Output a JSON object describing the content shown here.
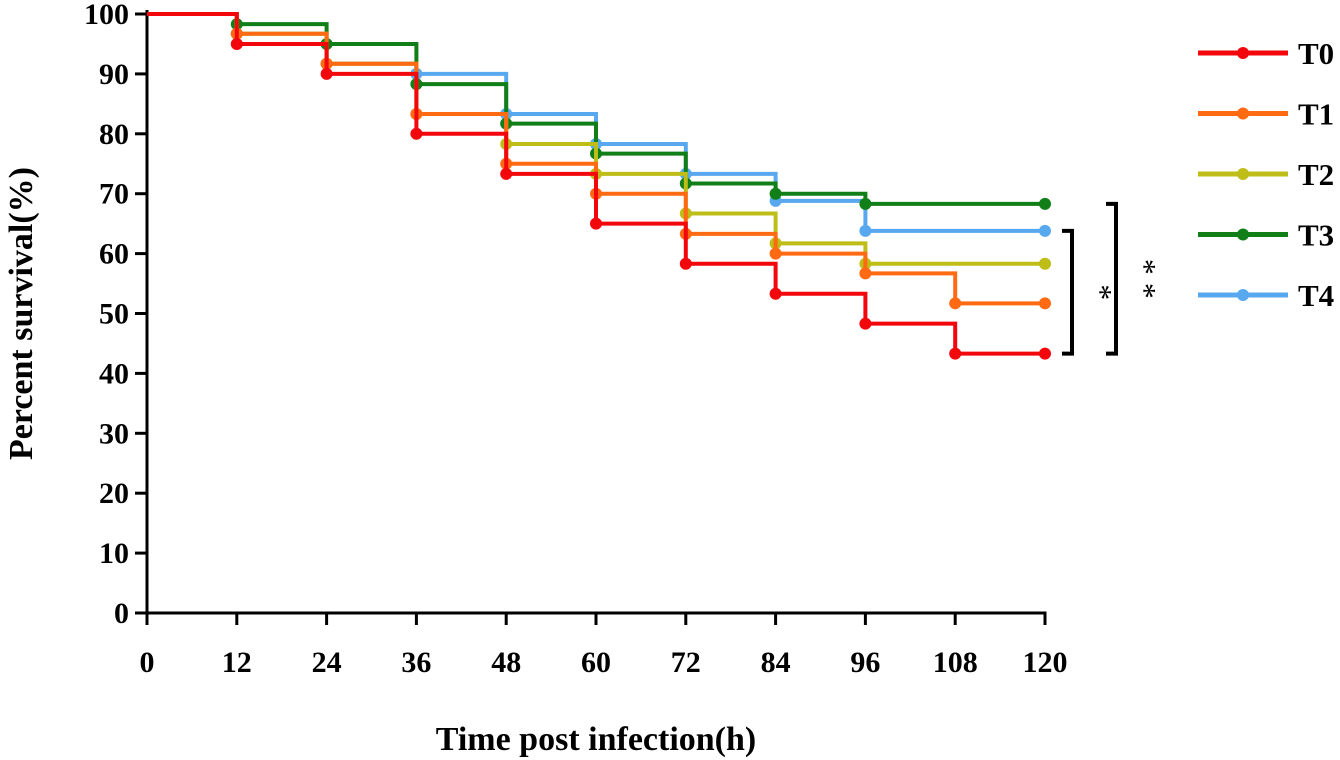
{
  "chart_data": {
    "type": "line",
    "title": "",
    "xlabel": "Time post infection(h)",
    "ylabel": "Percent survival(%)",
    "xlim": [
      0,
      120
    ],
    "ylim": [
      0,
      100
    ],
    "x_ticks": [
      0,
      12,
      24,
      36,
      48,
      60,
      72,
      84,
      96,
      108,
      120
    ],
    "x_tick_labels": [
      "0",
      "12",
      "24",
      "36",
      "48",
      "60",
      "72",
      "84",
      "96",
      "108",
      "120"
    ],
    "y_ticks": [
      0,
      10,
      20,
      30,
      40,
      50,
      60,
      70,
      80,
      90,
      100
    ],
    "y_tick_labels": [
      "0",
      "10",
      "20",
      "30",
      "40",
      "50",
      "60",
      "70",
      "80",
      "90",
      "100"
    ],
    "grid": false,
    "legend_position": "right",
    "x": [
      0,
      12,
      24,
      36,
      48,
      60,
      72,
      84,
      96,
      108,
      120
    ],
    "series": [
      {
        "name": "T0",
        "color": "#f2070d",
        "values": [
          100,
          95,
          90,
          80,
          73.3,
          65,
          58.3,
          53.3,
          48.3,
          43.3,
          43.3
        ]
      },
      {
        "name": "T1",
        "color": "#ff6a13",
        "values": [
          100,
          96.7,
          91.7,
          83.3,
          75,
          70,
          63.3,
          60,
          56.7,
          51.7,
          51.7
        ]
      },
      {
        "name": "T2",
        "color": "#bfbd17",
        "values": [
          100,
          96.7,
          91.7,
          83.3,
          78.3,
          73.3,
          66.7,
          61.7,
          58.3,
          58.3,
          58.3
        ]
      },
      {
        "name": "T3",
        "color": "#117f18",
        "values": [
          100,
          98.3,
          95,
          88.3,
          81.7,
          76.7,
          71.7,
          70,
          68.3,
          68.3,
          68.3
        ]
      },
      {
        "name": "T4",
        "color": "#57a8ee",
        "values": [
          100,
          96.7,
          91.7,
          90,
          83.3,
          78.3,
          73.3,
          68.8,
          63.8,
          63.8,
          63.8
        ]
      }
    ],
    "significance": [
      {
        "label": "*",
        "from": 63.8,
        "to": 43.3
      },
      {
        "label": "* *",
        "from": 68.3,
        "to": 43.3
      }
    ]
  }
}
